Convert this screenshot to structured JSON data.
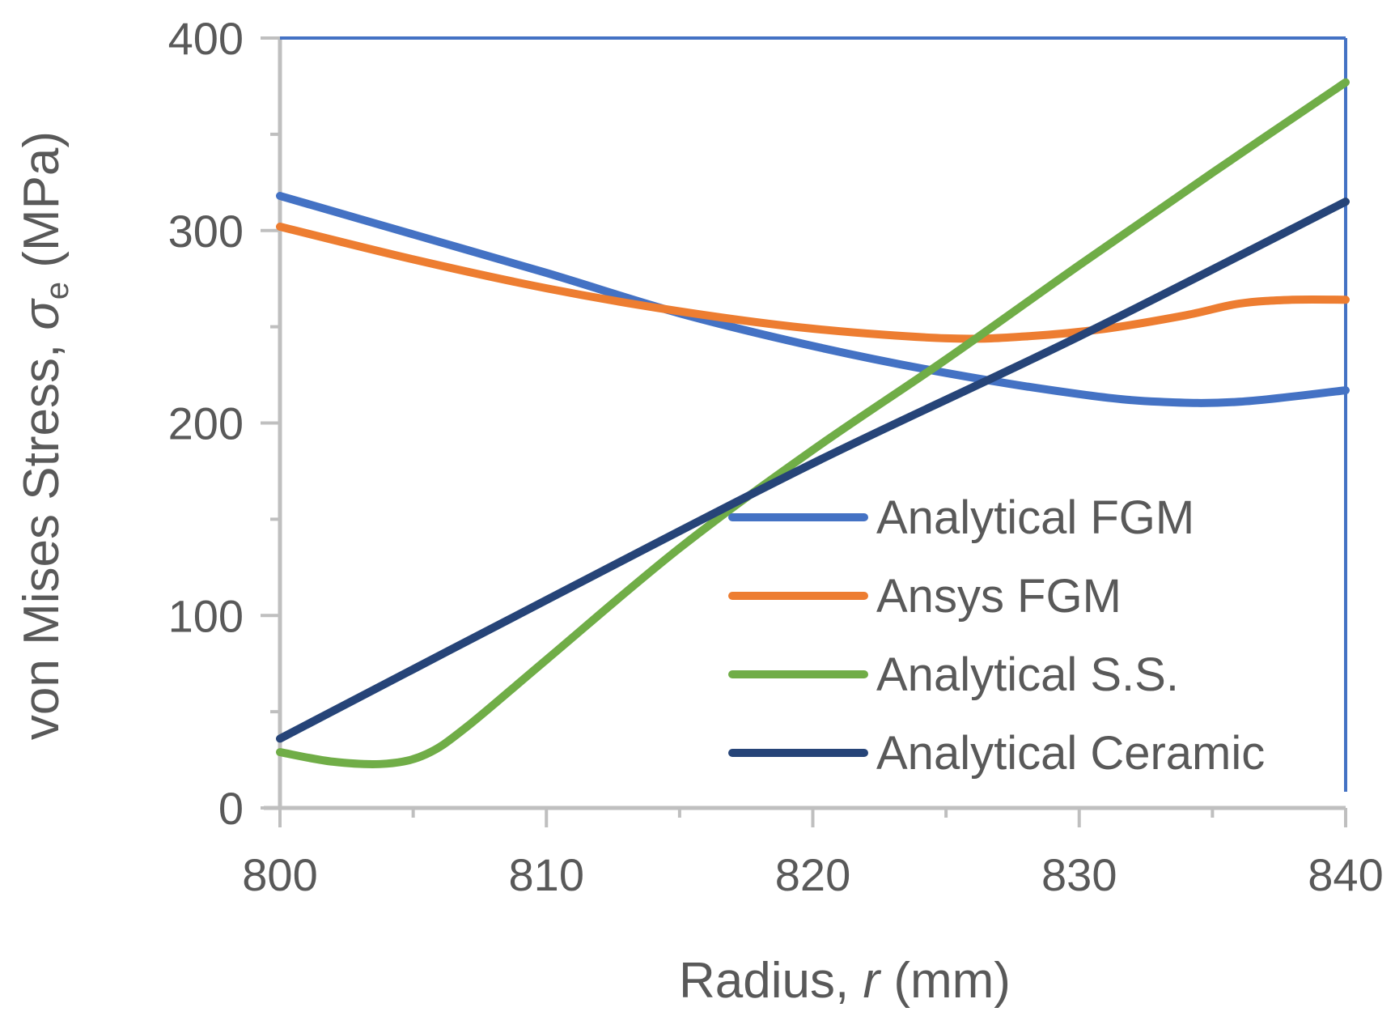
{
  "chart_data": {
    "type": "line",
    "xlabel": {
      "prefix": "Radius, ",
      "symbol": "r",
      "suffix": " (mm)"
    },
    "ylabel": {
      "prefix": "von Mises Stress, ",
      "symbol": "σ",
      "subscript": "e",
      "suffix": " (MPa)"
    },
    "xlim": [
      800,
      840
    ],
    "ylim": [
      0,
      400
    ],
    "x_ticks": [
      800,
      810,
      820,
      830,
      840
    ],
    "x_tick_labels": [
      "800",
      "810",
      "820",
      "830",
      "840"
    ],
    "y_ticks": [
      0,
      100,
      200,
      300,
      400
    ],
    "y_tick_labels": [
      "0",
      "100",
      "200",
      "300",
      "400"
    ],
    "x_minor_ticks": [
      805,
      815,
      825,
      835
    ],
    "y_minor_ticks": [
      50,
      150,
      250,
      350
    ],
    "grid": false,
    "legend_position": "right",
    "series": [
      {
        "name": "Analytical FGM",
        "color": "#4472C4",
        "x": [
          800,
          805,
          810,
          815,
          820,
          825,
          830,
          833,
          836,
          840
        ],
        "y": [
          318,
          298,
          278,
          257,
          240,
          226,
          215,
          211,
          211,
          217
        ]
      },
      {
        "name": "Ansys FGM",
        "color": "#ED7D31",
        "x": [
          800,
          805,
          810,
          815,
          820,
          825,
          828,
          831,
          834,
          836,
          838,
          840
        ],
        "y": [
          302,
          285,
          270,
          258,
          249,
          244,
          245,
          249,
          256,
          262,
          264,
          264
        ]
      },
      {
        "name": "Analytical S.S.",
        "color": "#70AD47",
        "x": [
          800,
          802,
          804,
          805.5,
          807,
          810,
          815,
          820,
          825,
          830,
          835,
          840
        ],
        "y": [
          29,
          24,
          23,
          28,
          42,
          77,
          135,
          186,
          233,
          282,
          330,
          377
        ]
      },
      {
        "name": "Analytical Ceramic",
        "color": "#264478",
        "x": [
          800,
          810,
          820,
          830,
          840
        ],
        "y": [
          36,
          108,
          179,
          245,
          315
        ]
      }
    ]
  }
}
